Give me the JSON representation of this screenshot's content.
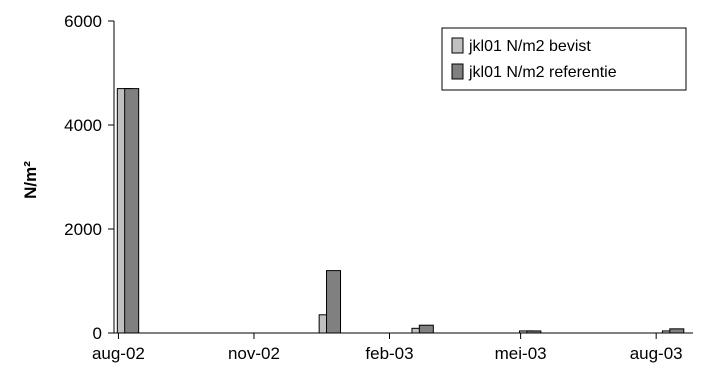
{
  "chart_data": {
    "type": "bar",
    "title": "",
    "xlabel": "",
    "ylabel": "N/m²",
    "ylim": [
      0,
      6000
    ],
    "yticks": [
      0,
      2000,
      4000,
      6000
    ],
    "y_tick_labels": [
      "0",
      "2000",
      "4000",
      "6000"
    ],
    "xlim": [
      "2002-07-29",
      "2003-08-26"
    ],
    "x_tick_labels": [
      "aug-02",
      "nov-02",
      "feb-03",
      "mei-03",
      "aug-03"
    ],
    "x_tick_dates": [
      "2002-08-01",
      "2002-11-01",
      "2003-02-01",
      "2003-05-01",
      "2003-08-01"
    ],
    "grid": false,
    "legend_position": "top-right",
    "series": [
      {
        "name": "jkl01 N/m2 bevist",
        "color": "#c0c0c0",
        "points": [
          {
            "date": "2002-08-05",
            "value": 4700
          },
          {
            "date": "2002-12-20",
            "value": 350
          },
          {
            "date": "2003-02-21",
            "value": 90
          },
          {
            "date": "2003-05-05",
            "value": 40
          },
          {
            "date": "2003-08-10",
            "value": 40
          }
        ]
      },
      {
        "name": "jkl01 N/m2 referentie",
        "color": "#808080",
        "points": [
          {
            "date": "2002-08-10",
            "value": 4700
          },
          {
            "date": "2002-12-25",
            "value": 1200
          },
          {
            "date": "2003-02-26",
            "value": 150
          },
          {
            "date": "2003-05-10",
            "value": 40
          },
          {
            "date": "2003-08-15",
            "value": 80
          }
        ]
      }
    ]
  }
}
